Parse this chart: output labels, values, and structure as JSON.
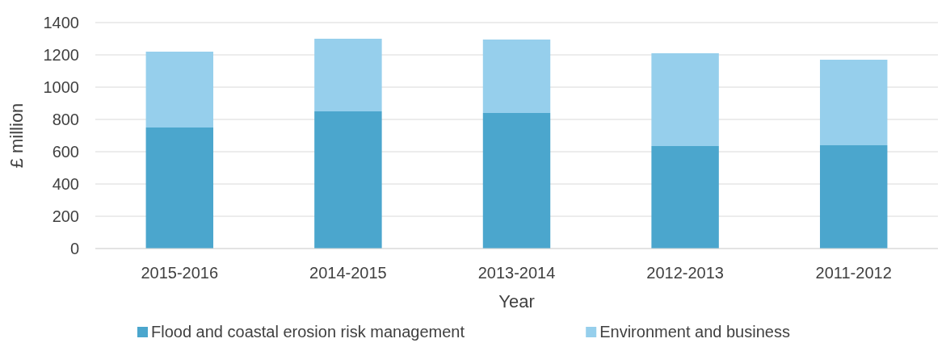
{
  "chart_data": {
    "type": "bar",
    "stacked": true,
    "xlabel": "Year",
    "ylabel": "£ million",
    "categories": [
      "2015-2016",
      "2014-2015",
      "2013-2014",
      "2012-2013",
      "2011-2012"
    ],
    "series": [
      {
        "name": "Flood and coastal erosion risk management",
        "color": "#4ba6cd",
        "values": [
          750,
          850,
          840,
          635,
          640
        ]
      },
      {
        "name": "Environment and business",
        "color": "#96cfec",
        "values": [
          470,
          450,
          455,
          575,
          530
        ]
      }
    ],
    "ylim": [
      0,
      1400
    ],
    "yticks": [
      0,
      200,
      400,
      600,
      800,
      1000,
      1200,
      1400
    ],
    "grid": "y",
    "legend": "bottom"
  }
}
